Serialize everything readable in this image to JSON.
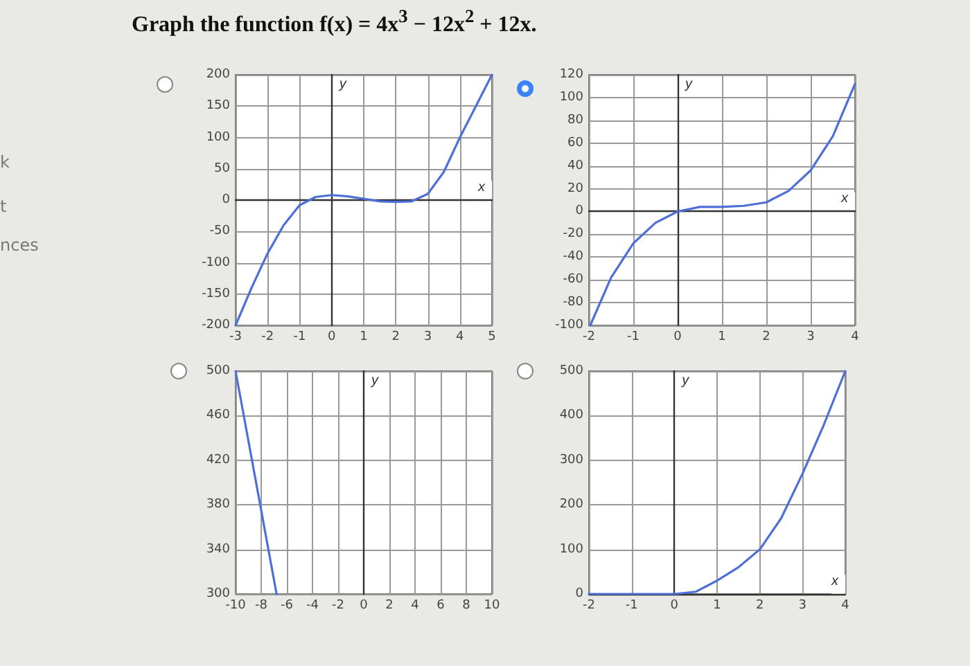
{
  "chart_data": [
    {
      "type": "line",
      "title": "Graph the function f(x) = 4x$^{3}$ − 12x$^{2}$ + 12x.",
      "annotations": [
        "k",
        "t",
        "nces"
      ],
      "xlabel": "x",
      "ylabel": "y",
      "grid": true,
      "x": [
        -3,
        -2.5,
        -2,
        -1.5,
        -1,
        -0.5,
        0,
        0.5,
        1,
        1.5,
        2,
        2.5,
        3,
        3.5,
        4,
        4.5,
        5
      ],
      "series": [
        {
          "color": "#4f6fd8",
          "values": [
            -200,
            -140,
            -85,
            -40,
            -8,
            5,
            8,
            6,
            2,
            -2,
            -3,
            -2,
            10,
            45,
            100,
            150,
            200
          ]
        }
      ],
      "xlim": [
        -3,
        5
      ],
      "xticks": [
        -3,
        -2,
        -1,
        0,
        1,
        2,
        3,
        4,
        5
      ],
      "ylim": [
        -200,
        200
      ],
      "yticks": [
        -200,
        -150,
        -100,
        -50,
        0,
        50,
        100,
        150,
        200
      ]
    },
    {
      "type": "line",
      "xlabel": "x",
      "ylabel": "y",
      "grid": true,
      "x": [
        -1.97,
        -1.5,
        -1,
        -0.5,
        0,
        0.5,
        1,
        1.5,
        2,
        2.5,
        3,
        3.5,
        4
      ],
      "series": [
        {
          "color": "#4f6fd8",
          "values": [
            -100,
            -58,
            -28,
            -10,
            0,
            4,
            4,
            5,
            8,
            18,
            36,
            66,
            112
          ]
        }
      ],
      "xlim": [
        -2,
        4
      ],
      "xticks": [
        -2,
        -1,
        0,
        1,
        2,
        3,
        4
      ],
      "ylim": [
        -100,
        120
      ],
      "yticks": [
        -100,
        -80,
        -60,
        -40,
        -20,
        0,
        20,
        40,
        60,
        80,
        100,
        120
      ]
    },
    {
      "type": "line",
      "ylabel": "y",
      "grid": true,
      "x": [
        -10,
        -6.8
      ],
      "series": [
        {
          "color": "#4f6fd8",
          "values": [
            500,
            300
          ]
        }
      ],
      "xlim": [
        -10,
        10
      ],
      "xticks": [
        -10,
        -8,
        -6,
        -4,
        -2,
        0,
        2,
        4,
        6,
        8,
        10
      ],
      "ylim": [
        300,
        500
      ],
      "yticks": [
        300,
        340,
        380,
        420,
        460,
        500
      ]
    },
    {
      "type": "line",
      "xlabel": "x",
      "ylabel": "y",
      "grid": true,
      "x": [
        -2,
        -1,
        0,
        0.5,
        1,
        1.5,
        2,
        2.5,
        3,
        3.5,
        4
      ],
      "series": [
        {
          "color": "#4f6fd8",
          "values": [
            0,
            0,
            0,
            5,
            30,
            60,
            100,
            170,
            270,
            380,
            500
          ]
        }
      ],
      "xlim": [
        -2,
        4
      ],
      "xticks": [
        -2,
        -1,
        0,
        1,
        2,
        3,
        4
      ],
      "ylim": [
        0,
        500
      ],
      "yticks": [
        0,
        100,
        200,
        300,
        400,
        500
      ]
    }
  ]
}
